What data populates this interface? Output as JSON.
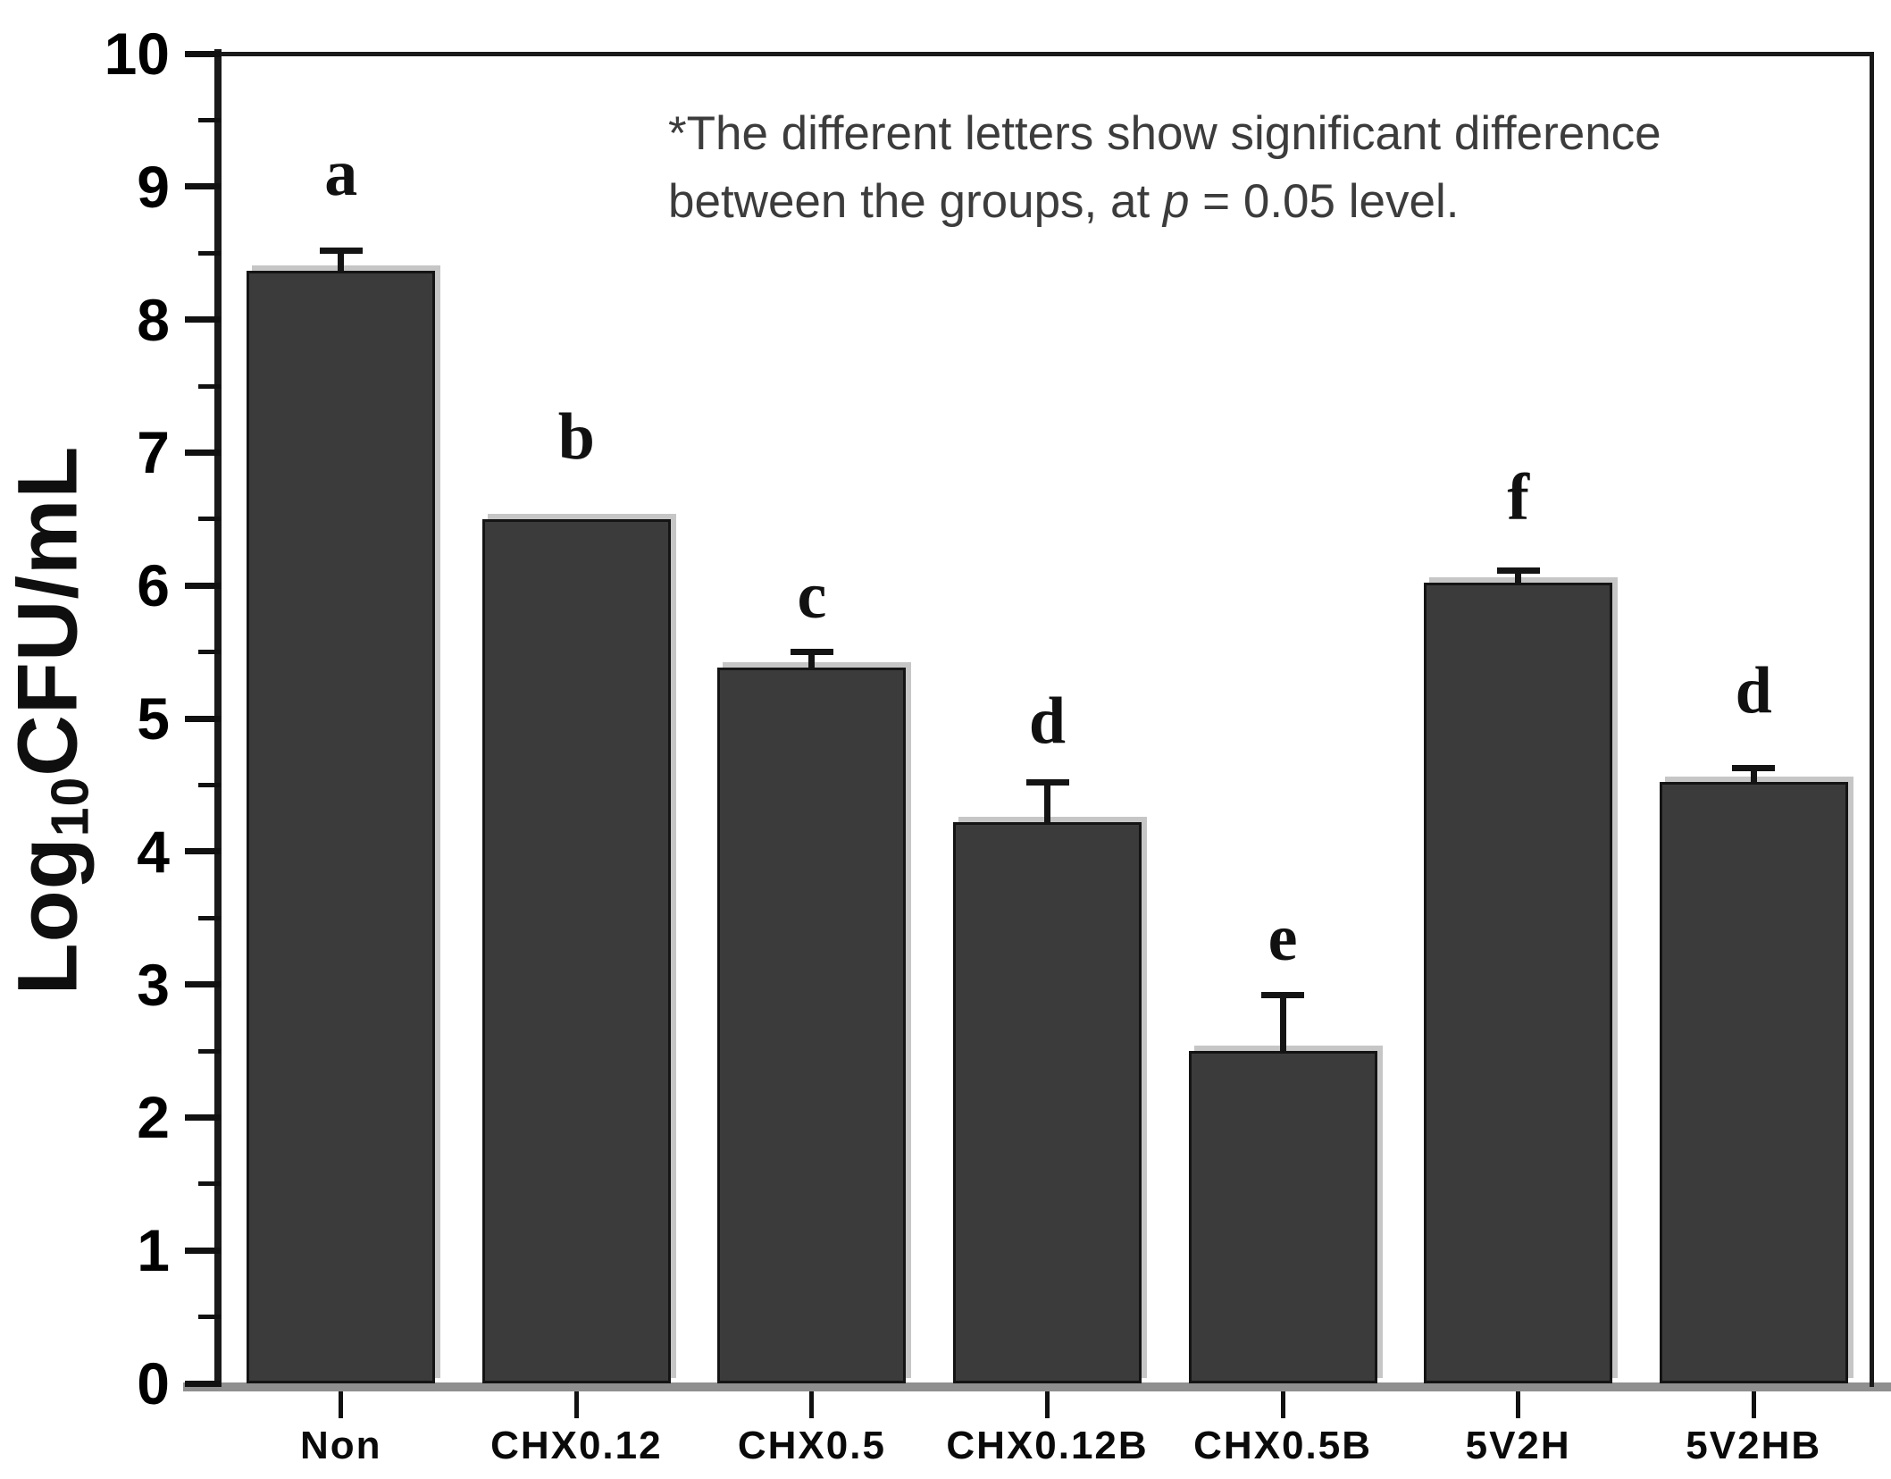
{
  "figure": {
    "background": "#ffffff"
  },
  "chart_data": {
    "type": "bar",
    "title": "",
    "ylabel": {
      "prefix": "Log",
      "sub": "10",
      "suffix": "CFU/mL"
    },
    "xlabel": "",
    "ylim": [
      0,
      10
    ],
    "ytick_interval": 1,
    "y_minor_interval": 0.5,
    "grid": false,
    "legend": "none",
    "categories": [
      "Non",
      "CHX0.12",
      "CHX0.5",
      "CHX0.12B",
      "CHX0.5B",
      "5V2H",
      "5V2HB"
    ],
    "series": [
      {
        "name": "Log10CFU/mL",
        "values": [
          8.37,
          6.5,
          5.38,
          4.22,
          2.5,
          6.02,
          4.52
        ],
        "errors": [
          0.15,
          0,
          0.12,
          0.3,
          0.42,
          0.09,
          0.11
        ],
        "letters": [
          "a",
          "b",
          "c",
          "d",
          "e",
          "f",
          "d"
        ],
        "letter_y": [
          9.1,
          7.12,
          5.92,
          4.98,
          3.35,
          6.66,
          5.21
        ]
      }
    ],
    "annotation": {
      "line1": "*The different letters show significant difference",
      "line2_pre": "between the groups, at ",
      "line2_italic": "p",
      "line2_post": " = 0.05 level."
    },
    "colors": {
      "bar_fill": "#3b3b3b",
      "bar_edge": "#141414",
      "bar_shadow": "#c6c6c6",
      "baseline": "#8f8f8f",
      "axis": "#1a1a1a",
      "annotation_text": "#3c3c3c",
      "tick_label": "#000000"
    }
  }
}
